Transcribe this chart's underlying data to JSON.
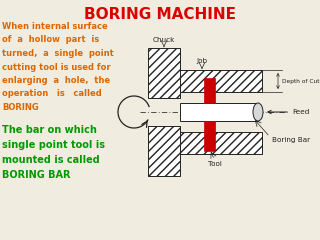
{
  "title": "BORING MACHINE",
  "title_color": "#dd0000",
  "title_fontsize": 11,
  "text1_lines": [
    "When internal surface",
    "of  a  hollow  part  is",
    "turned,  a  single  point",
    "cutting tool is used for",
    "enlarging  a  hole,  the",
    "operation   is   called",
    "BORING"
  ],
  "text1_color": "#dd6600",
  "text2_lines": [
    "The bar on which",
    "single point tool is",
    "mounted is called",
    "BORING BAR"
  ],
  "text2_color": "#009900",
  "bg_color": "#f0ede0",
  "dc": "#222222",
  "red": "#cc0000",
  "white": "#ffffff",
  "hatch_bg": "#ffffff"
}
